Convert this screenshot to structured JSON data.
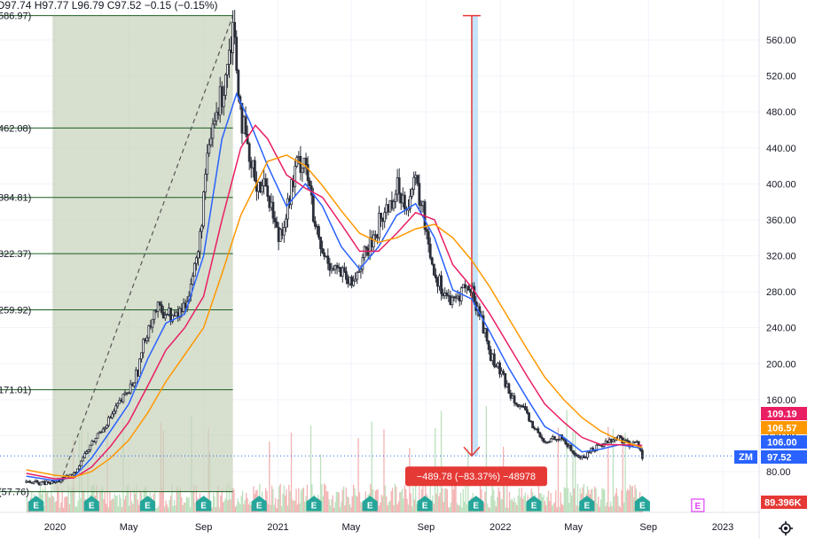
{
  "header": {
    "ohlc": "O97.74 H97.77 L96.79 C97.52 −0.15 (−0.15%)"
  },
  "colors": {
    "candle": "#2a2e39",
    "ma_fast": "#2962ff",
    "ma_mid": "#e91e63",
    "ma_slow": "#ff9800",
    "fib_zone": "#c8d2bd",
    "fib_line": "#1b5e20",
    "measure_line": "#e53935",
    "measure_band": "#bbdefb",
    "earnings": "#26a69a",
    "earnings_future": "#e040fb",
    "volume_up": "#a5d6a7",
    "volume_down": "#ef9a9a"
  },
  "chart_data": {
    "type": "line",
    "symbol": "ZM",
    "x_tick_labels": [
      "2020",
      "May",
      "Sep",
      "2021",
      "May",
      "Sep",
      "2022",
      "May",
      "Sep",
      "2023"
    ],
    "y_ticks": [
      80,
      120,
      160,
      200,
      240,
      280,
      320,
      360,
      400,
      440,
      480,
      520,
      560
    ],
    "ylim": [
      60,
      600
    ],
    "price_series": {
      "name": "ZM",
      "points": [
        [
          "2019-11-15",
          68
        ],
        [
          "2019-12-15",
          67
        ],
        [
          "2020-01-01",
          68
        ],
        [
          "2020-01-15",
          72
        ],
        [
          "2020-02-01",
          77
        ],
        [
          "2020-02-15",
          95
        ],
        [
          "2020-03-01",
          110
        ],
        [
          "2020-03-15",
          125
        ],
        [
          "2020-04-01",
          140
        ],
        [
          "2020-04-15",
          155
        ],
        [
          "2020-05-01",
          170
        ],
        [
          "2020-05-15",
          190
        ],
        [
          "2020-06-01",
          240
        ],
        [
          "2020-06-15",
          260
        ],
        [
          "2020-07-01",
          258
        ],
        [
          "2020-07-15",
          250
        ],
        [
          "2020-08-01",
          265
        ],
        [
          "2020-08-15",
          300
        ],
        [
          "2020-08-25",
          330
        ],
        [
          "2020-09-01",
          390
        ],
        [
          "2020-09-15",
          460
        ],
        [
          "2020-10-01",
          500
        ],
        [
          "2020-10-15",
          560
        ],
        [
          "2020-10-20",
          580
        ],
        [
          "2020-11-01",
          480
        ],
        [
          "2020-11-15",
          420
        ],
        [
          "2020-12-01",
          400
        ],
        [
          "2020-12-15",
          395
        ],
        [
          "2021-01-01",
          340
        ],
        [
          "2021-01-15",
          370
        ],
        [
          "2021-02-01",
          420
        ],
        [
          "2021-02-15",
          430
        ],
        [
          "2021-03-01",
          355
        ],
        [
          "2021-03-15",
          320
        ],
        [
          "2021-04-01",
          310
        ],
        [
          "2021-04-15",
          300
        ],
        [
          "2021-05-01",
          285
        ],
        [
          "2021-05-15",
          310
        ],
        [
          "2021-06-01",
          330
        ],
        [
          "2021-06-15",
          355
        ],
        [
          "2021-07-01",
          375
        ],
        [
          "2021-07-15",
          395
        ],
        [
          "2021-08-01",
          380
        ],
        [
          "2021-08-15",
          400
        ],
        [
          "2021-08-25",
          375
        ],
        [
          "2021-09-01",
          350
        ],
        [
          "2021-09-15",
          300
        ],
        [
          "2021-10-01",
          280
        ],
        [
          "2021-10-15",
          265
        ],
        [
          "2021-11-01",
          285
        ],
        [
          "2021-11-15",
          280
        ],
        [
          "2021-12-01",
          250
        ],
        [
          "2021-12-15",
          210
        ],
        [
          "2022-01-01",
          190
        ],
        [
          "2022-01-15",
          170
        ],
        [
          "2022-02-01",
          155
        ],
        [
          "2022-02-15",
          140
        ],
        [
          "2022-03-01",
          125
        ],
        [
          "2022-03-15",
          110
        ],
        [
          "2022-04-01",
          120
        ],
        [
          "2022-04-15",
          115
        ],
        [
          "2022-05-01",
          100
        ],
        [
          "2022-05-15",
          95
        ],
        [
          "2022-06-01",
          105
        ],
        [
          "2022-06-15",
          110
        ],
        [
          "2022-07-01",
          115
        ],
        [
          "2022-07-15",
          118
        ],
        [
          "2022-08-01",
          110
        ],
        [
          "2022-08-15",
          112
        ],
        [
          "2022-08-22",
          97.52
        ]
      ]
    },
    "moving_averages": [
      {
        "key": "ma_fast",
        "points": [
          [
            "2019-11-15",
            75
          ],
          [
            "2020-01-01",
            70
          ],
          [
            "2020-02-01",
            74
          ],
          [
            "2020-03-01",
            95
          ],
          [
            "2020-04-01",
            125
          ],
          [
            "2020-05-01",
            155
          ],
          [
            "2020-06-01",
            205
          ],
          [
            "2020-07-01",
            245
          ],
          [
            "2020-08-01",
            255
          ],
          [
            "2020-09-01",
            320
          ],
          [
            "2020-10-01",
            450
          ],
          [
            "2020-10-25",
            500
          ],
          [
            "2020-11-15",
            470
          ],
          [
            "2020-12-15",
            420
          ],
          [
            "2021-01-15",
            375
          ],
          [
            "2021-02-15",
            400
          ],
          [
            "2021-03-15",
            375
          ],
          [
            "2021-04-15",
            330
          ],
          [
            "2021-05-15",
            305
          ],
          [
            "2021-06-15",
            330
          ],
          [
            "2021-07-15",
            365
          ],
          [
            "2021-08-15",
            378
          ],
          [
            "2021-09-15",
            340
          ],
          [
            "2021-10-15",
            282
          ],
          [
            "2021-11-15",
            272
          ],
          [
            "2021-12-15",
            235
          ],
          [
            "2022-01-15",
            195
          ],
          [
            "2022-02-15",
            160
          ],
          [
            "2022-03-15",
            130
          ],
          [
            "2022-04-15",
            118
          ],
          [
            "2022-05-15",
            102
          ],
          [
            "2022-06-15",
            105
          ],
          [
            "2022-07-15",
            110
          ],
          [
            "2022-08-22",
            106
          ]
        ]
      },
      {
        "key": "ma_mid",
        "points": [
          [
            "2019-11-15",
            78
          ],
          [
            "2020-01-01",
            72
          ],
          [
            "2020-02-01",
            73
          ],
          [
            "2020-03-01",
            85
          ],
          [
            "2020-04-01",
            108
          ],
          [
            "2020-05-01",
            135
          ],
          [
            "2020-06-01",
            175
          ],
          [
            "2020-07-01",
            215
          ],
          [
            "2020-08-01",
            240
          ],
          [
            "2020-09-01",
            275
          ],
          [
            "2020-10-01",
            360
          ],
          [
            "2020-11-01",
            440
          ],
          [
            "2020-11-25",
            465
          ],
          [
            "2020-12-15",
            450
          ],
          [
            "2021-01-15",
            410
          ],
          [
            "2021-02-15",
            395
          ],
          [
            "2021-03-15",
            385
          ],
          [
            "2021-04-15",
            355
          ],
          [
            "2021-05-15",
            325
          ],
          [
            "2021-06-15",
            325
          ],
          [
            "2021-07-15",
            345
          ],
          [
            "2021-08-15",
            368
          ],
          [
            "2021-09-15",
            360
          ],
          [
            "2021-10-15",
            310
          ],
          [
            "2021-11-15",
            285
          ],
          [
            "2021-12-15",
            255
          ],
          [
            "2022-01-15",
            220
          ],
          [
            "2022-02-15",
            185
          ],
          [
            "2022-03-15",
            155
          ],
          [
            "2022-04-15",
            135
          ],
          [
            "2022-05-15",
            118
          ],
          [
            "2022-06-15",
            110
          ],
          [
            "2022-07-15",
            110
          ],
          [
            "2022-08-22",
            109.19
          ]
        ]
      },
      {
        "key": "ma_slow",
        "points": [
          [
            "2019-11-15",
            82
          ],
          [
            "2020-01-01",
            76
          ],
          [
            "2020-02-01",
            74
          ],
          [
            "2020-03-01",
            80
          ],
          [
            "2020-04-01",
            95
          ],
          [
            "2020-05-01",
            115
          ],
          [
            "2020-06-01",
            145
          ],
          [
            "2020-07-01",
            180
          ],
          [
            "2020-08-01",
            210
          ],
          [
            "2020-09-01",
            240
          ],
          [
            "2020-10-01",
            300
          ],
          [
            "2020-11-01",
            365
          ],
          [
            "2020-12-15",
            425
          ],
          [
            "2021-01-15",
            432
          ],
          [
            "2021-02-15",
            420
          ],
          [
            "2021-03-15",
            398
          ],
          [
            "2021-04-15",
            370
          ],
          [
            "2021-05-15",
            345
          ],
          [
            "2021-06-15",
            335
          ],
          [
            "2021-07-15",
            340
          ],
          [
            "2021-08-15",
            350
          ],
          [
            "2021-09-15",
            355
          ],
          [
            "2021-10-15",
            340
          ],
          [
            "2021-11-15",
            315
          ],
          [
            "2021-12-15",
            285
          ],
          [
            "2022-01-15",
            250
          ],
          [
            "2022-02-15",
            215
          ],
          [
            "2022-03-15",
            185
          ],
          [
            "2022-04-15",
            160
          ],
          [
            "2022-05-15",
            140
          ],
          [
            "2022-06-15",
            125
          ],
          [
            "2022-07-15",
            115
          ],
          [
            "2022-08-22",
            106.57
          ]
        ]
      }
    ],
    "fib_levels": [
      {
        "label": "586.97)",
        "value": 586.97
      },
      {
        "label": "462.08)",
        "value": 462.08
      },
      {
        "label": "384.81)",
        "value": 384.81
      },
      {
        "label": "322.37)",
        "value": 322.37
      },
      {
        "label": "259.92)",
        "value": 259.92
      },
      {
        "label": "171.01)",
        "value": 171.01
      },
      {
        "label": "(57.76)",
        "value": 57.76
      }
    ],
    "fib_range": {
      "start": "2019-12-28",
      "end": "2020-10-19"
    },
    "trend_line": {
      "from": [
        "2020-01-10",
        68
      ],
      "to": [
        "2020-10-19",
        586.97
      ]
    },
    "measure": {
      "date": "2021-11-15",
      "from": 587,
      "to": 97.52,
      "label": "−489.78 (−83.37%) −48978"
    },
    "price_labels": [
      {
        "text": "109.19",
        "value": 109.19,
        "key": "ma_mid"
      },
      {
        "text": "106.57",
        "value": 106.57,
        "key": "ma_slow"
      },
      {
        "text": "106.00",
        "value": 106.0,
        "key": "ma_fast"
      },
      {
        "text": "97.52",
        "value": 97.52,
        "key": "ma_fast"
      }
    ],
    "current_price": 97.52,
    "symbol_badge": "ZM",
    "volume_label": "89.396K",
    "earnings": {
      "marker": "E",
      "dates": [
        "2019-12-01",
        "2020-03-01",
        "2020-06-01",
        "2020-09-01",
        "2020-12-01",
        "2021-03-01",
        "2021-06-01",
        "2021-08-30",
        "2021-11-22",
        "2022-02-25",
        "2022-05-23",
        "2022-08-22"
      ],
      "future_date": "2022-11-21"
    }
  }
}
